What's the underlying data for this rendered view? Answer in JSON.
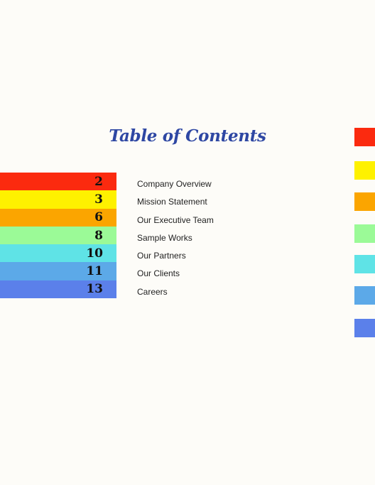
{
  "title": "Table of Contents",
  "entries": [
    {
      "page": "2",
      "label": "Company Overview",
      "color": "#fb2a0f"
    },
    {
      "page": "3",
      "label": "Mission Statement",
      "color": "#fef100"
    },
    {
      "page": "6",
      "label": "Our Executive Team",
      "color": "#fba500"
    },
    {
      "page": "8",
      "label": "Sample Works",
      "color": "#9bfa97"
    },
    {
      "page": "10",
      "label": "Our Partners",
      "color": "#5fe3e6"
    },
    {
      "page": "11",
      "label": "Our Clients",
      "color": "#5ca9e8"
    },
    {
      "page": "13",
      "label": "Careers",
      "color": "#5b80ea"
    }
  ],
  "colors": {
    "background": "#fdfcf8",
    "title": "#2e47a3"
  }
}
